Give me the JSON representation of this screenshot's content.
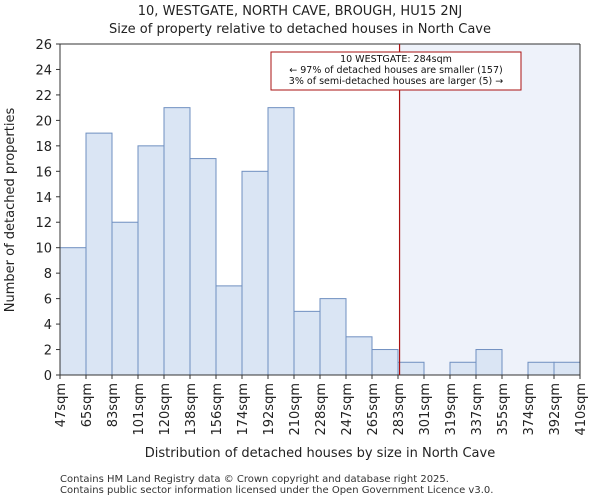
{
  "header": {
    "title_line1": "10, WESTGATE, NORTH CAVE, BROUGH, HU15 2NJ",
    "title_line2": "Size of property relative to detached houses in North Cave"
  },
  "footer": {
    "line1": "Contains HM Land Registry data © Crown copyright and database right 2025.",
    "line2": "Contains public sector information licensed under the Open Government Licence v3.0."
  },
  "colors": {
    "bar_fill": "#dae5f4",
    "bar_stroke": "#6f8fc0",
    "highlight_region": "#eef2fa",
    "marker_line": "#aa1111",
    "annotation_border": "#aa1111"
  },
  "chart_data": {
    "type": "bar",
    "title": "10, WESTGATE, NORTH CAVE, BROUGH, HU15 2NJ",
    "subtitle": "Size of property relative to detached houses in North Cave",
    "xlabel": "Distribution of detached houses by size in North Cave",
    "ylabel": "Number of detached properties",
    "bin_edges_labels": [
      "47sqm",
      "65sqm",
      "83sqm",
      "101sqm",
      "120sqm",
      "138sqm",
      "156sqm",
      "174sqm",
      "192sqm",
      "210sqm",
      "228sqm",
      "247sqm",
      "265sqm",
      "283sqm",
      "301sqm",
      "319sqm",
      "337sqm",
      "355sqm",
      "374sqm",
      "392sqm",
      "410sqm"
    ],
    "values": [
      10,
      19,
      12,
      18,
      21,
      17,
      7,
      16,
      21,
      5,
      6,
      3,
      2,
      1,
      0,
      1,
      2,
      0,
      1,
      1
    ],
    "ylim": [
      0,
      26
    ],
    "yticks": [
      0,
      2,
      4,
      6,
      8,
      10,
      12,
      14,
      16,
      18,
      20,
      22,
      24,
      26
    ],
    "marker_value_sqm": 284,
    "marker_bin_position": 13.06,
    "annotation": {
      "line1": "10 WESTGATE: 284sqm",
      "line2": "← 97% of detached houses are smaller (157)",
      "line3": "3% of semi-detached houses are larger (5) →"
    }
  }
}
